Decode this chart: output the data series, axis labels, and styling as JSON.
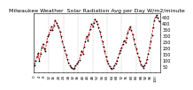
{
  "title": "Milwaukee Weather  Solar Radiation Avg per Day W/m2/minute",
  "line_color": "#dd0000",
  "marker_color": "#000000",
  "bg_color": "#ffffff",
  "grid_color": "#999999",
  "title_fontsize": 4.5,
  "tick_fontsize": 3.5,
  "ylim": [
    0,
    480
  ],
  "ytick_values": [
    50,
    100,
    150,
    200,
    250,
    300,
    350,
    400,
    450
  ],
  "ytick_labels": [
    "50",
    "100",
    "150",
    "200",
    "250",
    "300",
    "350",
    "400",
    "450"
  ],
  "n_points": 104,
  "values": [
    60,
    95,
    130,
    155,
    95,
    150,
    200,
    230,
    190,
    170,
    250,
    290,
    310,
    340,
    370,
    340,
    380,
    420,
    400,
    380,
    360,
    330,
    290,
    250,
    210,
    180,
    140,
    110,
    80,
    60,
    45,
    35,
    30,
    40,
    55,
    70,
    85,
    100,
    140,
    175,
    150,
    210,
    250,
    290,
    260,
    310,
    350,
    390,
    370,
    400,
    430,
    410,
    390,
    360,
    330,
    290,
    250,
    210,
    170,
    130,
    95,
    70,
    50,
    35,
    30,
    40,
    55,
    75,
    95,
    120,
    155,
    180,
    200,
    230,
    260,
    240,
    280,
    320,
    350,
    370,
    340,
    310,
    270,
    230,
    190,
    155,
    120,
    90,
    65,
    50,
    40,
    60,
    80,
    110,
    150,
    200,
    250,
    300,
    360,
    420,
    450,
    460,
    440,
    410
  ],
  "grid_x_positions": [
    0,
    12,
    24,
    36,
    48,
    60,
    72,
    84,
    96
  ],
  "x_tick_step": 4,
  "ylabel_right": true
}
